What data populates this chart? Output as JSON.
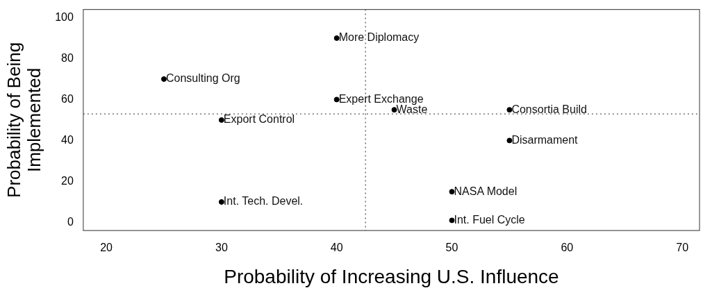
{
  "chart_data": {
    "type": "scatter",
    "xlabel": "Probability of Increasing U.S. Influence",
    "ylabel": "Probability of Being\nImplemented",
    "series": [
      {
        "color": "#000000",
        "x": [
          40,
          25,
          40,
          45,
          55,
          30,
          55,
          50,
          30,
          50
        ],
        "values": [
          90,
          70,
          60,
          55,
          55,
          50,
          40,
          15,
          10,
          1
        ],
        "value_labels": [
          "More Diplomacy",
          "Consulting Org",
          "Expert Exchange",
          "Waste",
          "Consortia Build",
          "Export Control",
          "Disarmament",
          "NASA Model",
          "Int. Tech. Devel.",
          "Int. Fuel Cycle"
        ]
      }
    ],
    "xlim": [
      18,
      71.5
    ],
    "ylim": [
      -4,
      104
    ],
    "xticks": [
      20,
      30,
      40,
      50,
      60,
      70
    ],
    "yticks": [
      0,
      20,
      40,
      60,
      80,
      100
    ],
    "ref_lines": [
      {
        "axis": "x",
        "value": 42.5,
        "line_style": "dotted",
        "color": "#555555"
      },
      {
        "axis": "y",
        "value": 53,
        "line_style": "dotted",
        "color": "#555555"
      }
    ],
    "grid": false,
    "legend": false,
    "marker": "circle"
  }
}
